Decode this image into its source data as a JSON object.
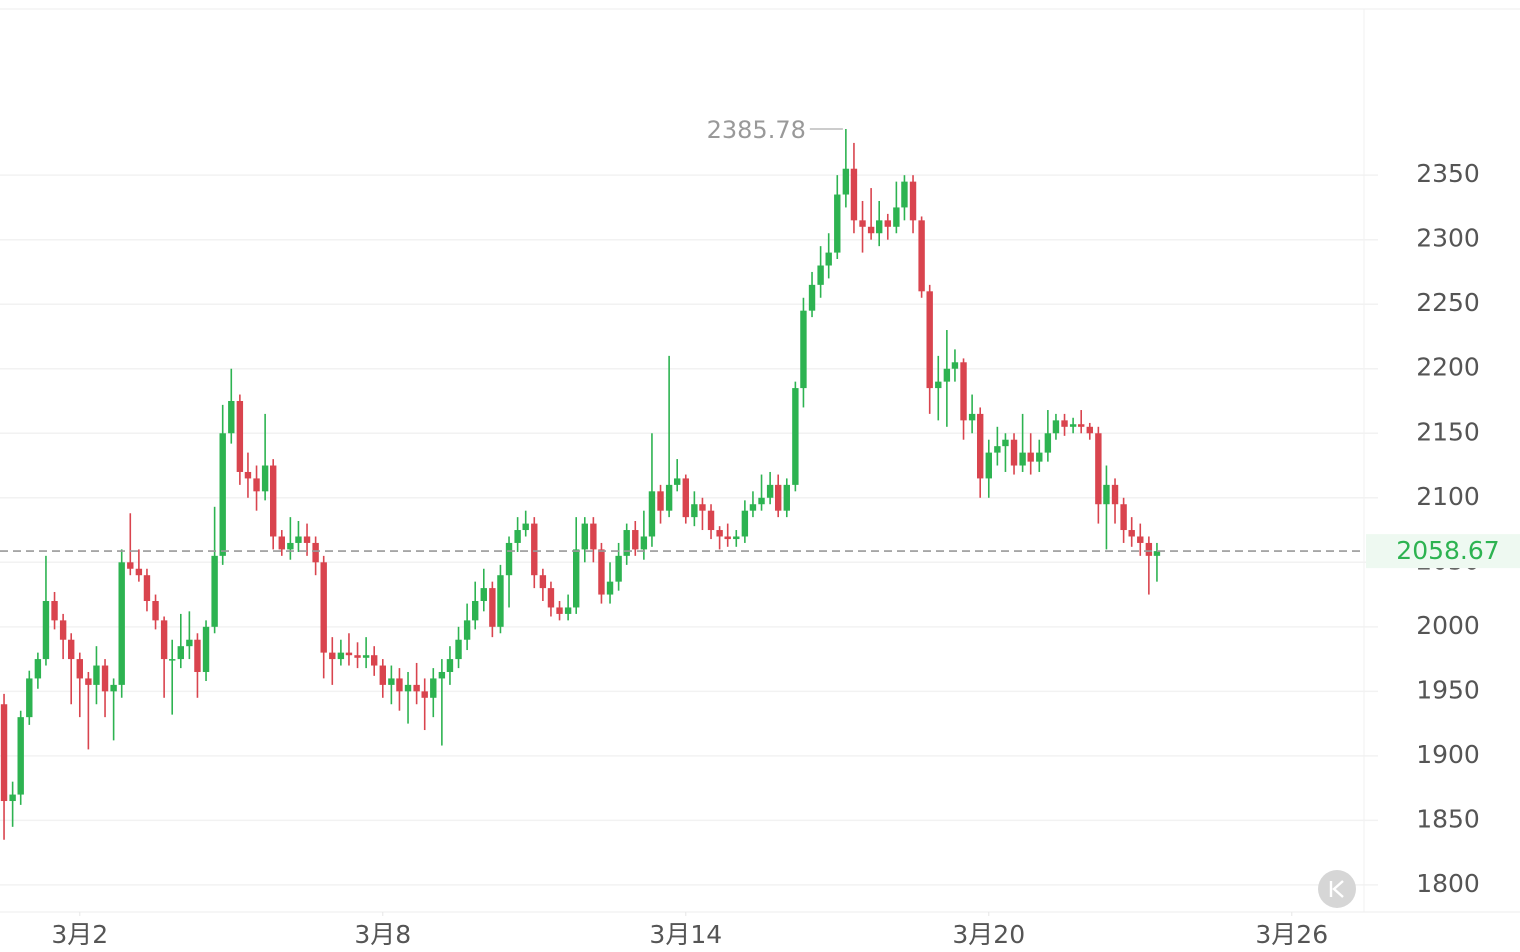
{
  "chart_data": {
    "type": "candlestick",
    "x": [
      0.5,
      0.67,
      0.83,
      1,
      1.17,
      1.33,
      1.5,
      1.67,
      1.83,
      2,
      2.17,
      2.33,
      2.5,
      2.67,
      2.83,
      3,
      3.17,
      3.33,
      3.5,
      3.67,
      3.83,
      4,
      4.17,
      4.33,
      4.5,
      4.67,
      4.83,
      5,
      5.17,
      5.33,
      5.5,
      5.67,
      5.83,
      6,
      6.17,
      6.33,
      6.5,
      6.67,
      6.83,
      7,
      7.17,
      7.33,
      7.5,
      7.67,
      7.83,
      8,
      8.17,
      8.33,
      8.5,
      8.67,
      8.83,
      9,
      9.17,
      9.33,
      9.5,
      9.67,
      9.83,
      10,
      10.17,
      10.33,
      10.5,
      10.67,
      10.83,
      11,
      11.17,
      11.33,
      11.5,
      11.67,
      11.83,
      12,
      12.17,
      12.33,
      12.5,
      12.67,
      12.83,
      13,
      13.17,
      13.33,
      13.5,
      13.67,
      13.83,
      14,
      14.17,
      14.33,
      14.5,
      14.67,
      14.83,
      15,
      15.17,
      15.33,
      15.5,
      15.67,
      15.83,
      16,
      16.17,
      16.33,
      16.5,
      16.67,
      16.83,
      17,
      17.17,
      17.33,
      17.5,
      17.67,
      17.83,
      18,
      18.17,
      18.33,
      18.5,
      18.67,
      18.83,
      19,
      19.17,
      19.33,
      19.5,
      19.67,
      19.83,
      20,
      20.17,
      20.33,
      20.5,
      20.67,
      20.83,
      21,
      21.17,
      21.33,
      21.5,
      21.67,
      21.83,
      22,
      22.17,
      22.33,
      22.5,
      22.67,
      22.83,
      23,
      23.17,
      23.33
    ],
    "open": [
      1940,
      1865,
      1870,
      1930,
      1960,
      1975,
      2020,
      2005,
      1990,
      1975,
      1960,
      1955,
      1970,
      1950,
      1955,
      2050,
      2045,
      2040,
      2020,
      2005,
      1975,
      1975,
      1985,
      1990,
      1965,
      2000,
      2055,
      2150,
      2175,
      2120,
      2115,
      2105,
      2125,
      2070,
      2060,
      2065,
      2070,
      2065,
      2050,
      1980,
      1975,
      1980,
      1978,
      1976,
      1978,
      1970,
      1955,
      1960,
      1950,
      1955,
      1950,
      1945,
      1960,
      1965,
      1975,
      1990,
      2005,
      2020,
      2030,
      2000,
      2040,
      2065,
      2075,
      2080,
      2040,
      2030,
      2015,
      2010,
      2015,
      2060,
      2080,
      2060,
      2025,
      2035,
      2055,
      2075,
      2060,
      2070,
      2105,
      2090,
      2110,
      2115,
      2085,
      2095,
      2090,
      2075,
      2070,
      2068,
      2070,
      2090,
      2095,
      2100,
      2110,
      2090,
      2110,
      2185,
      2245,
      2265,
      2280,
      2290,
      2335,
      2355,
      2315,
      2310,
      2305,
      2315,
      2310,
      2325,
      2345,
      2315,
      2260,
      2185,
      2190,
      2200,
      2205,
      2160,
      2165,
      2115,
      2135,
      2140,
      2145,
      2125,
      2135,
      2128,
      2135,
      2150,
      2160,
      2155,
      2157,
      2155,
      2150,
      2095,
      2110,
      2095,
      2075,
      2070,
      2065,
      2055
    ],
    "high": [
      1948,
      1880,
      1935,
      1966,
      1980,
      2055,
      2027,
      2010,
      1995,
      1980,
      1965,
      1985,
      1975,
      1960,
      2060,
      2088,
      2060,
      2045,
      2025,
      2008,
      1990,
      2010,
      2012,
      1995,
      2005,
      2093,
      2172,
      2200,
      2180,
      2135,
      2125,
      2165,
      2130,
      2075,
      2085,
      2082,
      2080,
      2070,
      2055,
      1992,
      1990,
      1995,
      1988,
      1992,
      1985,
      1975,
      1970,
      1968,
      1965,
      1972,
      1960,
      1968,
      1975,
      1985,
      2000,
      2018,
      2035,
      2045,
      2035,
      2048,
      2070,
      2085,
      2090,
      2085,
      2045,
      2035,
      2020,
      2025,
      2085,
      2085,
      2085,
      2065,
      2050,
      2065,
      2080,
      2082,
      2090,
      2150,
      2110,
      2210,
      2130,
      2118,
      2105,
      2100,
      2095,
      2078,
      2080,
      2075,
      2098,
      2105,
      2118,
      2120,
      2118,
      2115,
      2190,
      2255,
      2275,
      2295,
      2305,
      2350,
      2385.78,
      2375,
      2330,
      2340,
      2330,
      2320,
      2345,
      2350,
      2350,
      2318,
      2265,
      2210,
      2230,
      2215,
      2208,
      2180,
      2170,
      2145,
      2155,
      2150,
      2150,
      2165,
      2150,
      2145,
      2168,
      2165,
      2165,
      2162,
      2168,
      2158,
      2155,
      2125,
      2115,
      2100,
      2085,
      2080,
      2070,
      2065
    ],
    "low": [
      1835,
      1845,
      1862,
      1924,
      1952,
      1970,
      1998,
      1975,
      1940,
      1930,
      1905,
      1940,
      1930,
      1912,
      1945,
      2040,
      2035,
      2012,
      1998,
      1945,
      1932,
      1968,
      1975,
      1945,
      1958,
      1995,
      2048,
      2142,
      2110,
      2100,
      2090,
      2098,
      2060,
      2055,
      2052,
      2058,
      2055,
      2040,
      1960,
      1955,
      1970,
      1970,
      1968,
      1968,
      1962,
      1945,
      1940,
      1935,
      1925,
      1940,
      1920,
      1930,
      1908,
      1955,
      1968,
      1982,
      1998,
      2012,
      1992,
      1995,
      2015,
      2058,
      2070,
      2030,
      2020,
      2008,
      2005,
      2005,
      2010,
      2050,
      2050,
      2018,
      2018,
      2028,
      2048,
      2055,
      2052,
      2062,
      2080,
      2085,
      2105,
      2080,
      2078,
      2075,
      2068,
      2060,
      2062,
      2062,
      2065,
      2085,
      2090,
      2095,
      2085,
      2085,
      2105,
      2170,
      2240,
      2255,
      2270,
      2285,
      2325,
      2305,
      2290,
      2300,
      2295,
      2300,
      2305,
      2315,
      2305,
      2255,
      2165,
      2160,
      2155,
      2190,
      2145,
      2150,
      2100,
      2100,
      2125,
      2120,
      2118,
      2120,
      2118,
      2120,
      2128,
      2145,
      2148,
      2150,
      2150,
      2145,
      2080,
      2060,
      2080,
      2065,
      2062,
      2055,
      2025,
      2035
    ],
    "close": [
      1865,
      1870,
      1930,
      1960,
      1975,
      2020,
      2005,
      1990,
      1975,
      1960,
      1955,
      1970,
      1950,
      1955,
      2050,
      2045,
      2040,
      2020,
      2005,
      1975,
      1975,
      1985,
      1990,
      1965,
      2000,
      2055,
      2150,
      2175,
      2120,
      2115,
      2105,
      2125,
      2070,
      2060,
      2065,
      2070,
      2065,
      2050,
      1980,
      1975,
      1980,
      1978,
      1976,
      1978,
      1970,
      1955,
      1960,
      1950,
      1955,
      1950,
      1945,
      1960,
      1965,
      1975,
      1990,
      2005,
      2020,
      2030,
      2000,
      2040,
      2065,
      2075,
      2080,
      2040,
      2030,
      2015,
      2010,
      2015,
      2060,
      2080,
      2060,
      2025,
      2035,
      2055,
      2075,
      2060,
      2070,
      2105,
      2090,
      2110,
      2115,
      2085,
      2095,
      2090,
      2075,
      2070,
      2068,
      2070,
      2090,
      2095,
      2100,
      2110,
      2090,
      2110,
      2185,
      2245,
      2265,
      2280,
      2290,
      2335,
      2355,
      2315,
      2310,
      2305,
      2315,
      2310,
      2325,
      2345,
      2315,
      2260,
      2185,
      2190,
      2200,
      2205,
      2160,
      2165,
      2115,
      2135,
      2140,
      2145,
      2125,
      2135,
      2128,
      2135,
      2150,
      2160,
      2155,
      2157,
      2155,
      2150,
      2095,
      2110,
      2095,
      2075,
      2070,
      2065,
      2055,
      2058.67
    ],
    "up_color": "#2db351",
    "down_color": "#d9444e",
    "xlim": [
      0.42,
      27.45
    ],
    "xticks": [
      {
        "value": 2,
        "label": "3月2"
      },
      {
        "value": 8,
        "label": "3月8"
      },
      {
        "value": 14,
        "label": "3月14"
      },
      {
        "value": 20,
        "label": "3月20"
      },
      {
        "value": 26,
        "label": "3月26"
      }
    ],
    "ylim": [
      1779,
      2478
    ],
    "yticks": [
      1800,
      1850,
      1900,
      1950,
      2000,
      2050,
      2100,
      2150,
      2200,
      2250,
      2300,
      2350
    ],
    "grid": true
  }
}
